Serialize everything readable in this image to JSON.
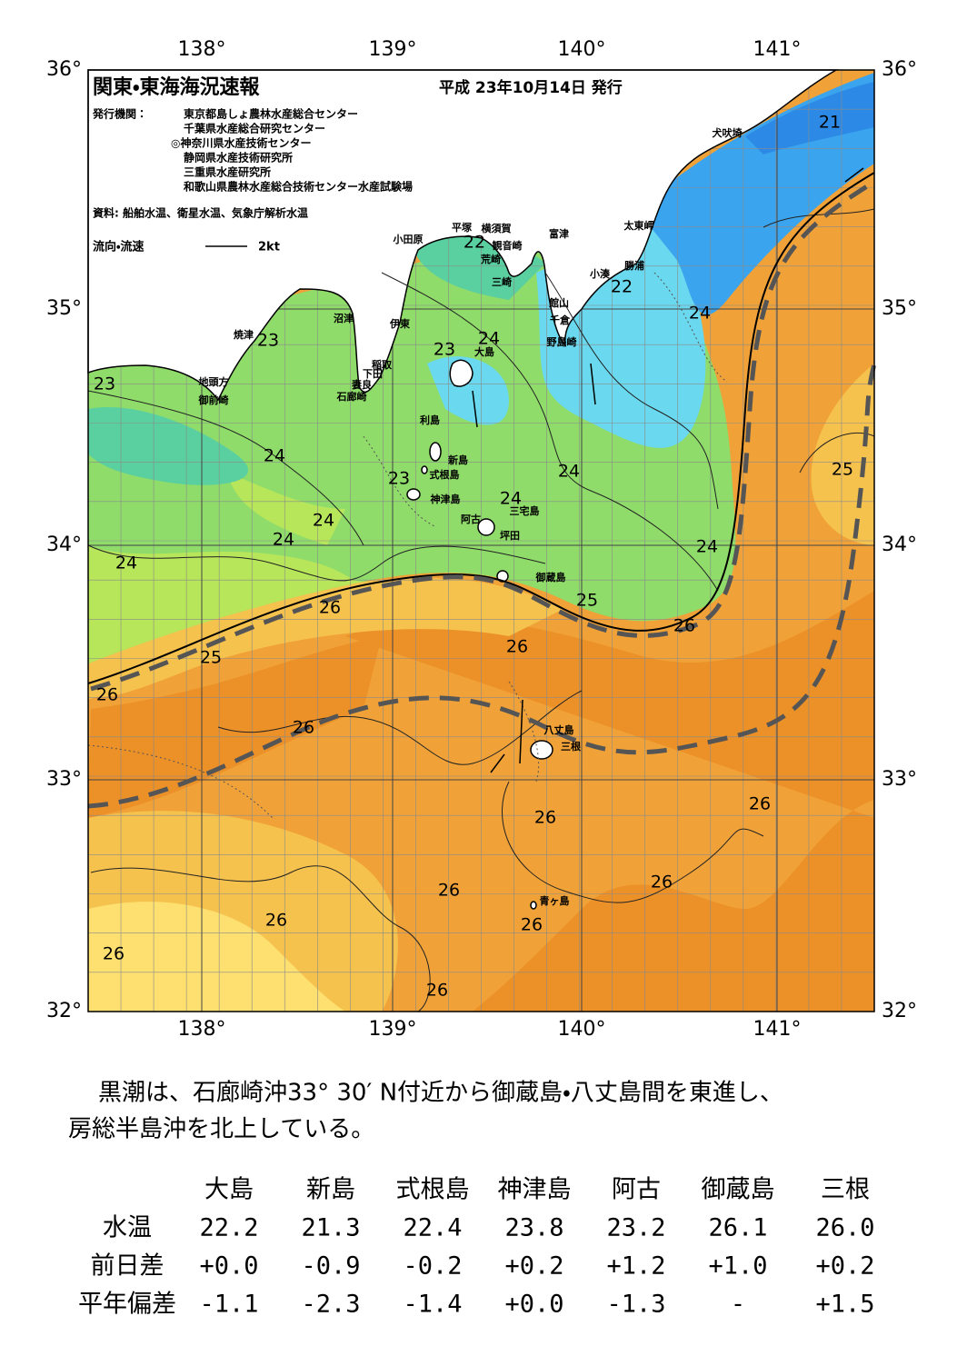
{
  "header": {
    "title": "関東・東海海況速報",
    "issue_date": "平成 23年10月14日 発行",
    "publisher_label": "発行機関：",
    "publishers": [
      "東京都島しょ農林水産総合センター",
      "千葉県水産総合研究センター",
      "◎神奈川県水産技術センター",
      "静岡県水産技術研究所",
      "三重県水産研究所",
      "和歌山県農林水産総合技術センター水産試験場"
    ],
    "source": "資料: 船舶水温、衛星水温、気象庁解析水温",
    "flow_legend": "流向・流速",
    "flow_scale": "2kt"
  },
  "map": {
    "longitude_labels": [
      "138°",
      "139°",
      "140°",
      "141°"
    ],
    "latitude_labels": [
      "36°",
      "35°",
      "34°",
      "33°",
      "32°"
    ],
    "temperature_labels": [
      "21",
      "22",
      "22",
      "24",
      "23",
      "23",
      "24",
      "23",
      "24",
      "23",
      "24",
      "25",
      "24",
      "24",
      "24",
      "24",
      "24",
      "25",
      "26",
      "26",
      "26",
      "25",
      "26",
      "26",
      "26",
      "26",
      "26",
      "26",
      "26",
      "26",
      "26",
      "26"
    ],
    "place_names": [
      "犬吠埼",
      "太東岬",
      "勝浦",
      "小湊",
      "富津",
      "平塚",
      "横須賀",
      "観音崎",
      "荒崎",
      "三崎",
      "小田原",
      "館山",
      "千倉",
      "野島崎",
      "沼津",
      "伊東",
      "焼津",
      "稲取",
      "下田",
      "妻良",
      "石廊崎",
      "地頭方",
      "御前崎",
      "大島",
      "利島",
      "新島",
      "式根島",
      "神津島",
      "三宅島",
      "阿古",
      "坪田",
      "御蔵島",
      "八丈島",
      "三根",
      "青ヶ島"
    ]
  },
  "description": [
    "黒潮は、石廊崎沖33° 30′ N付近から御蔵島・八丈島間を東進し、",
    "房総半島沖を北上している。"
  ],
  "table": {
    "columns": [
      "大島",
      "新島",
      "式根島",
      "神津島",
      "阿古",
      "御蔵島",
      "三根"
    ],
    "rows": [
      {
        "label": "水温",
        "values": [
          "22.2",
          "21.3",
          "22.4",
          "23.8",
          "23.2",
          "26.1",
          "26.0"
        ]
      },
      {
        "label": "前日差",
        "values": [
          "+0.0",
          "-0.9",
          "-0.2",
          "+0.2",
          "+1.2",
          "+1.0",
          "+0.2"
        ]
      },
      {
        "label": "平年偏差",
        "values": [
          "-1.1",
          "-2.3",
          "-1.4",
          "+0.0",
          "-1.3",
          "-",
          "+1.5"
        ]
      }
    ]
  }
}
